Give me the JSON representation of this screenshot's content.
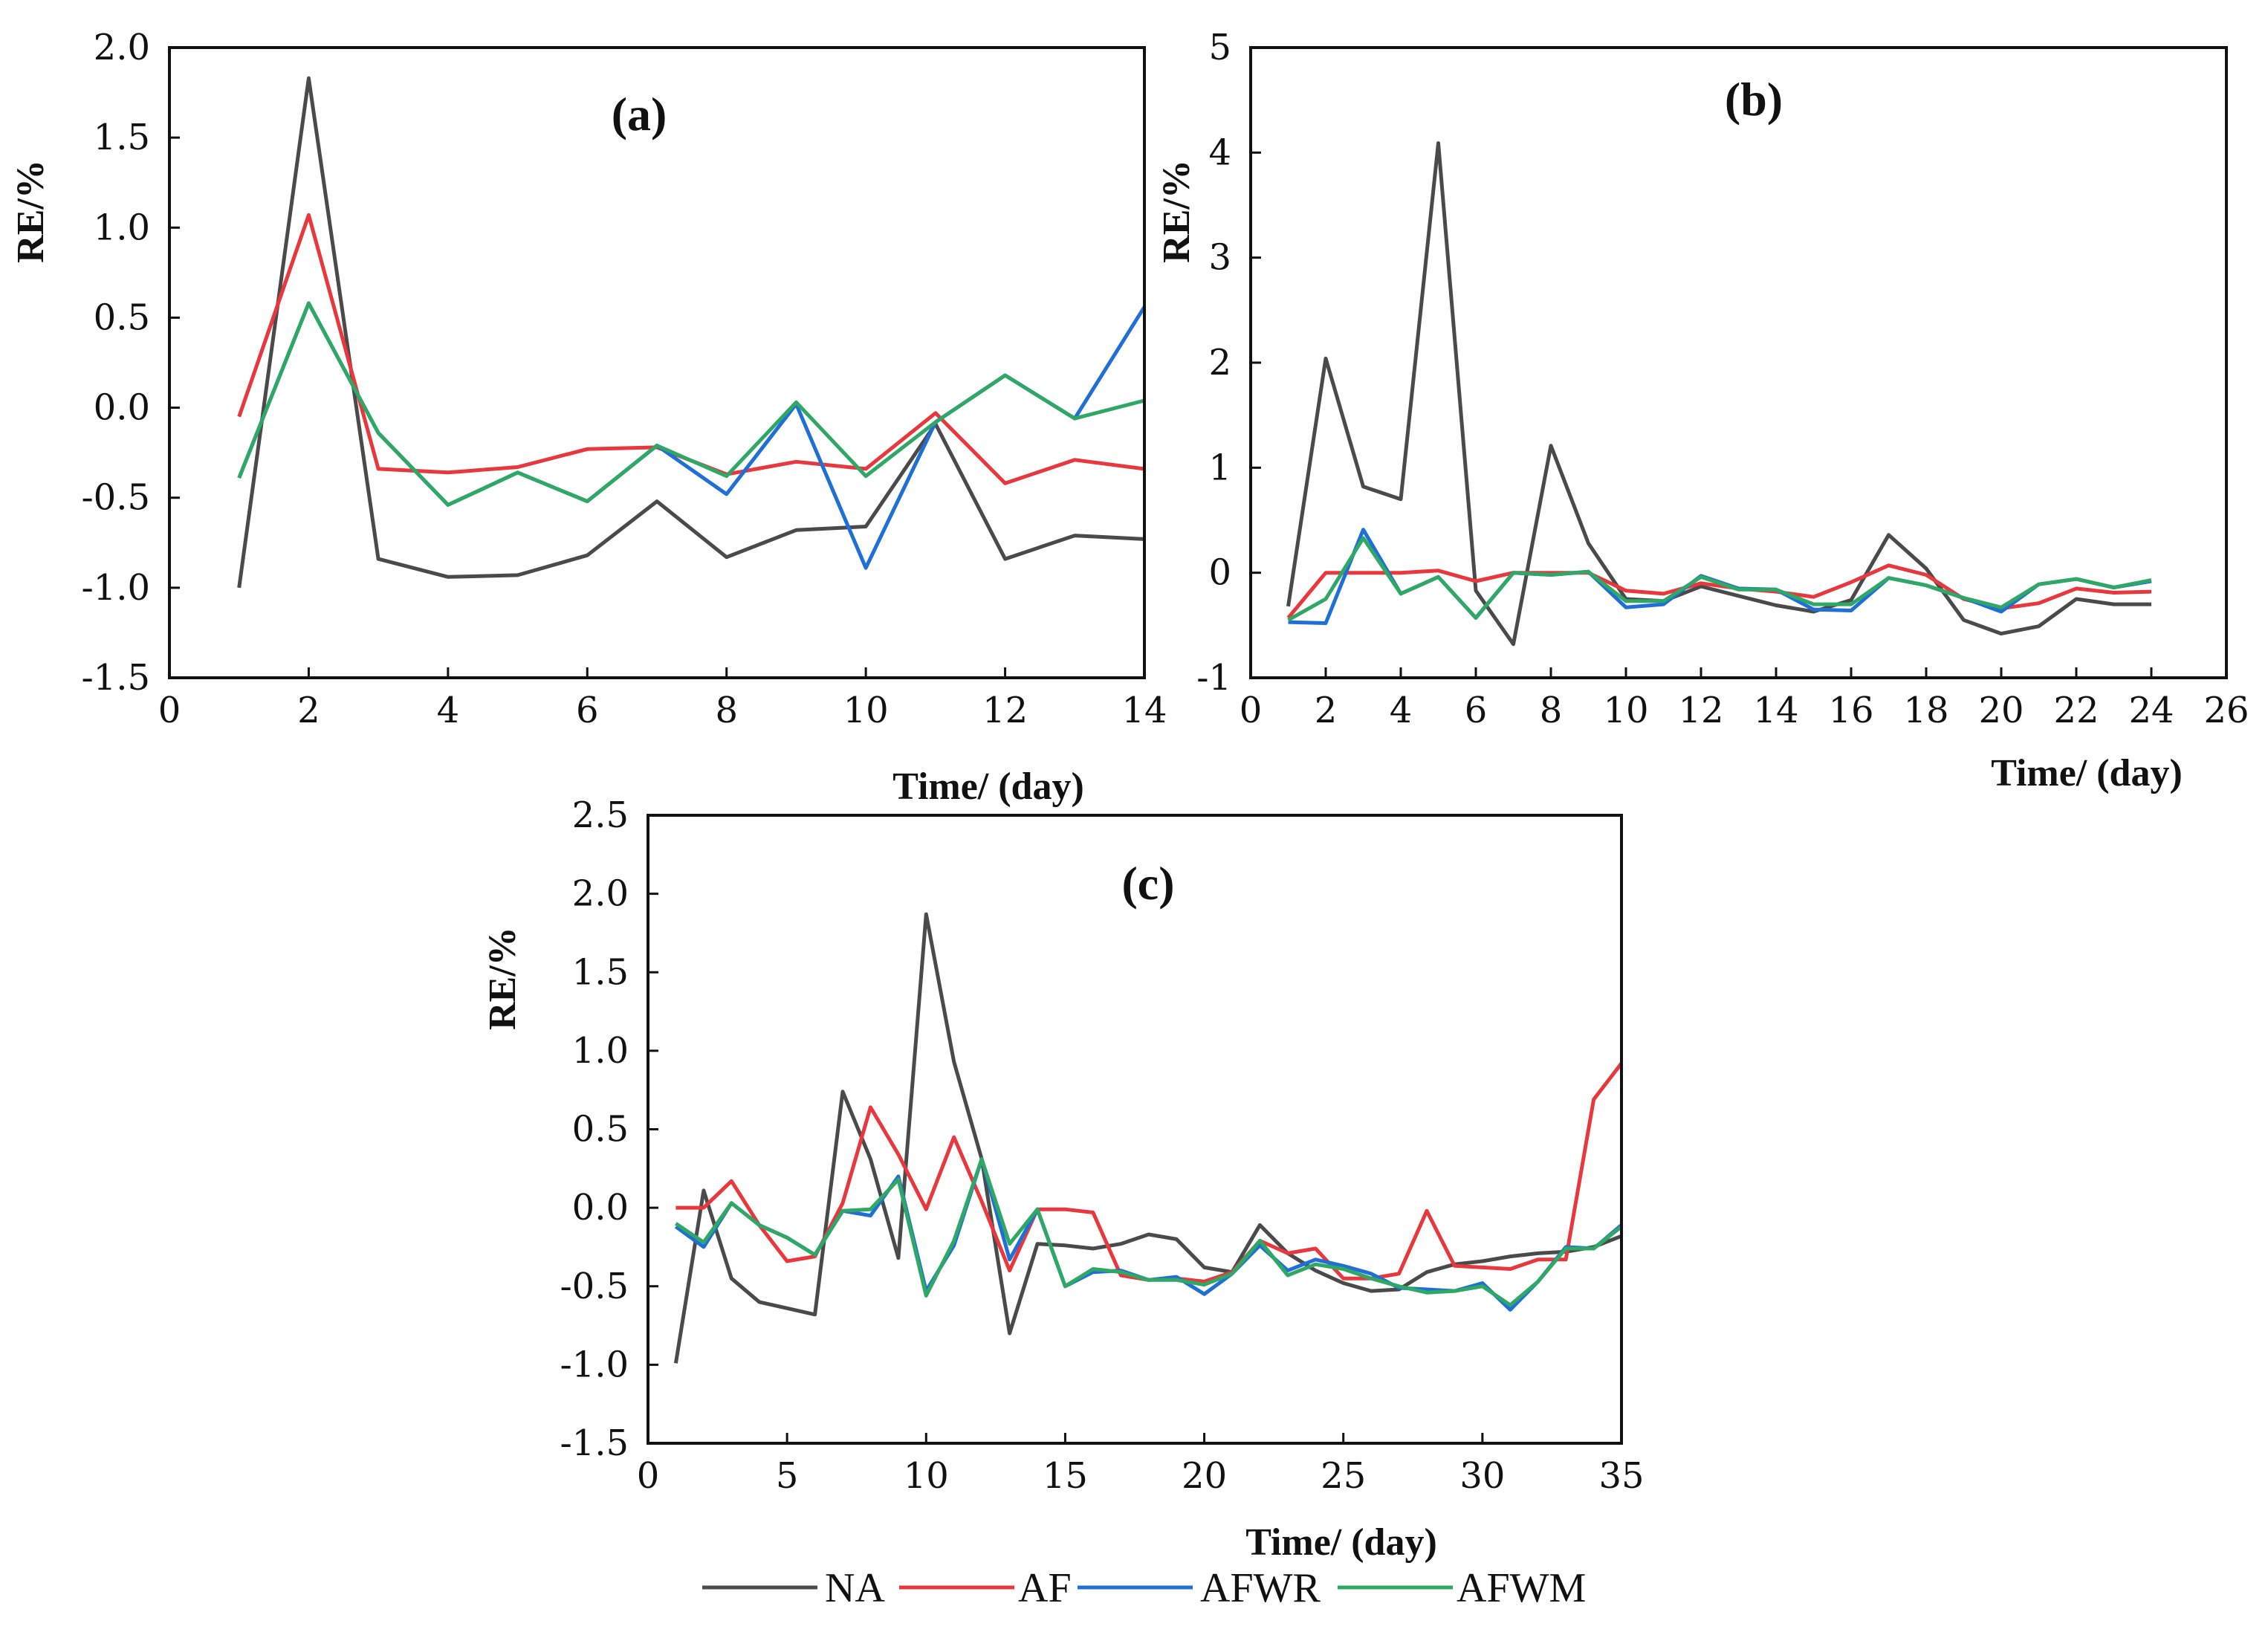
{
  "legend": [
    {
      "name": "NA",
      "color": "#4a4a4a"
    },
    {
      "name": "AF",
      "color": "#e8383d"
    },
    {
      "name": "AFWR",
      "color": "#1f6fd6"
    },
    {
      "name": "AFWM",
      "color": "#2fa866"
    }
  ],
  "chart_data": [
    {
      "type": "line",
      "panel_label": "(a)",
      "xlabel": "Time/ (day)",
      "ylabel": "RE/%",
      "xlim": [
        0,
        14
      ],
      "ylim": [
        -1.5,
        2.0
      ],
      "xticks": [
        0,
        2,
        4,
        6,
        8,
        10,
        12,
        14
      ],
      "xtick_labels": [
        "0",
        "2",
        "4",
        "6",
        "8",
        "10",
        "12",
        "14"
      ],
      "yticks": [
        -1.5,
        -1.0,
        -0.5,
        0.0,
        0.5,
        1.0,
        1.5,
        2.0
      ],
      "ytick_labels": [
        "-1.5",
        "-1.0",
        "-0.5",
        "0.0",
        "0.5",
        "1.0",
        "1.5",
        "2.0"
      ],
      "x": [
        1,
        2,
        3,
        4,
        5,
        6,
        7,
        8,
        9,
        10,
        11,
        12,
        13,
        14
      ],
      "series": [
        {
          "name": "NA",
          "values": [
            -1.0,
            1.83,
            -0.84,
            -0.94,
            -0.93,
            -0.82,
            -0.52,
            -0.83,
            -0.68,
            -0.66,
            -0.09,
            -0.84,
            -0.71,
            -0.73
          ]
        },
        {
          "name": "AF",
          "values": [
            -0.05,
            1.07,
            -0.34,
            -0.36,
            -0.33,
            -0.23,
            -0.22,
            -0.37,
            -0.3,
            -0.34,
            -0.03,
            -0.42,
            -0.29,
            -0.34
          ]
        },
        {
          "name": "AFWR",
          "values": [
            -0.39,
            0.58,
            -0.14,
            -0.54,
            -0.36,
            -0.52,
            -0.21,
            -0.48,
            0.02,
            -0.89,
            -0.08,
            0.18,
            -0.06,
            0.56
          ]
        },
        {
          "name": "AFWM",
          "values": [
            -0.39,
            0.58,
            -0.14,
            -0.54,
            -0.36,
            -0.52,
            -0.21,
            -0.38,
            0.03,
            -0.38,
            -0.08,
            0.18,
            -0.06,
            0.04
          ]
        }
      ]
    },
    {
      "type": "line",
      "panel_label": "(b)",
      "xlabel": "Time/ (day)",
      "ylabel": "RE/%",
      "xlim": [
        0,
        26
      ],
      "ylim": [
        -1,
        5
      ],
      "xticks": [
        0,
        2,
        4,
        6,
        8,
        10,
        12,
        14,
        16,
        18,
        20,
        22,
        24,
        26
      ],
      "xtick_labels": [
        "0",
        "2",
        "4",
        "6",
        "8",
        "10",
        "12",
        "14",
        "16",
        "18",
        "20",
        "22",
        "24",
        "26"
      ],
      "yticks": [
        -1,
        0,
        1,
        2,
        3,
        4,
        5
      ],
      "ytick_labels": [
        "-1",
        "0",
        "1",
        "2",
        "3",
        "4",
        "5"
      ],
      "x": [
        1,
        2,
        3,
        4,
        5,
        6,
        7,
        8,
        9,
        10,
        11,
        12,
        13,
        14,
        15,
        16,
        17,
        18,
        19,
        20,
        21,
        22,
        23,
        24
      ],
      "series": [
        {
          "name": "NA",
          "values": [
            -0.32,
            2.04,
            0.82,
            0.7,
            4.09,
            -0.17,
            -0.68,
            1.21,
            0.28,
            -0.25,
            -0.27,
            -0.13,
            -0.22,
            -0.31,
            -0.37,
            -0.26,
            0.36,
            0.04,
            -0.45,
            -0.58,
            -0.51,
            -0.25,
            -0.3,
            -0.3
          ]
        },
        {
          "name": "AF",
          "values": [
            -0.43,
            0.0,
            0.0,
            0.0,
            0.02,
            -0.08,
            0.0,
            0.0,
            0.0,
            -0.17,
            -0.2,
            -0.1,
            -0.15,
            -0.18,
            -0.23,
            -0.09,
            0.07,
            -0.02,
            -0.25,
            -0.34,
            -0.29,
            -0.15,
            -0.19,
            -0.18
          ]
        },
        {
          "name": "AFWR",
          "values": [
            -0.47,
            -0.48,
            0.41,
            -0.2,
            -0.04,
            -0.43,
            0.0,
            -0.02,
            0.01,
            -0.33,
            -0.3,
            -0.03,
            -0.15,
            -0.16,
            -0.35,
            -0.36,
            -0.05,
            -0.12,
            -0.24,
            -0.37,
            -0.11,
            -0.06,
            -0.14,
            -0.08
          ]
        },
        {
          "name": "AFWM",
          "values": [
            -0.45,
            -0.25,
            0.33,
            -0.2,
            -0.04,
            -0.43,
            0.0,
            -0.02,
            0.01,
            -0.27,
            -0.27,
            -0.04,
            -0.16,
            -0.16,
            -0.3,
            -0.3,
            -0.05,
            -0.12,
            -0.24,
            -0.33,
            -0.11,
            -0.06,
            -0.14,
            -0.07
          ]
        }
      ]
    },
    {
      "type": "line",
      "panel_label": "(c)",
      "xlabel": "Time/ (day)",
      "ylabel": "RE/%",
      "xlim": [
        0,
        35
      ],
      "ylim": [
        -1.5,
        2.5
      ],
      "xticks": [
        0,
        5,
        10,
        15,
        20,
        25,
        30,
        35
      ],
      "xtick_labels": [
        "0",
        "5",
        "10",
        "15",
        "20",
        "25",
        "30",
        "35"
      ],
      "yticks": [
        -1.5,
        -1.0,
        -0.5,
        0.0,
        0.5,
        1.0,
        1.5,
        2.0,
        2.5
      ],
      "ytick_labels": [
        "-1.5",
        "-1.0",
        "-0.5",
        "0.0",
        "0.5",
        "1.0",
        "1.5",
        "2.0",
        "2.5"
      ],
      "x": [
        1,
        2,
        3,
        4,
        5,
        6,
        7,
        8,
        9,
        10,
        11,
        12,
        13,
        14,
        15,
        16,
        17,
        18,
        19,
        20,
        21,
        22,
        23,
        24,
        25,
        26,
        27,
        28,
        29,
        30,
        31,
        32,
        33,
        34,
        35
      ],
      "series": [
        {
          "name": "NA",
          "values": [
            -0.99,
            0.11,
            -0.45,
            -0.6,
            -0.64,
            -0.68,
            0.74,
            0.31,
            -0.32,
            1.87,
            0.93,
            0.31,
            -0.8,
            -0.23,
            -0.24,
            -0.26,
            -0.23,
            -0.17,
            -0.2,
            -0.38,
            -0.41,
            -0.11,
            -0.29,
            -0.4,
            -0.48,
            -0.53,
            -0.52,
            -0.41,
            -0.36,
            -0.34,
            -0.31,
            -0.29,
            -0.28,
            -0.25,
            -0.18
          ]
        },
        {
          "name": "AF",
          "values": [
            0.0,
            0.0,
            0.17,
            -0.11,
            -0.34,
            -0.31,
            0.03,
            0.64,
            0.34,
            -0.01,
            0.45,
            0.04,
            -0.4,
            -0.01,
            -0.01,
            -0.03,
            -0.43,
            -0.46,
            -0.45,
            -0.47,
            -0.41,
            -0.21,
            -0.29,
            -0.26,
            -0.45,
            -0.45,
            -0.42,
            -0.02,
            -0.37,
            -0.38,
            -0.39,
            -0.33,
            -0.33,
            0.69,
            0.92
          ]
        },
        {
          "name": "AFWR",
          "values": [
            -0.12,
            -0.25,
            0.03,
            -0.11,
            -0.19,
            -0.3,
            -0.02,
            -0.05,
            0.2,
            -0.53,
            -0.24,
            0.31,
            -0.33,
            -0.01,
            -0.5,
            -0.41,
            -0.4,
            -0.46,
            -0.44,
            -0.55,
            -0.42,
            -0.24,
            -0.4,
            -0.33,
            -0.37,
            -0.42,
            -0.51,
            -0.52,
            -0.53,
            -0.48,
            -0.65,
            -0.47,
            -0.25,
            -0.26,
            -0.11
          ]
        },
        {
          "name": "AFWM",
          "values": [
            -0.1,
            -0.22,
            0.03,
            -0.11,
            -0.19,
            -0.3,
            -0.02,
            -0.01,
            0.18,
            -0.56,
            -0.21,
            0.31,
            -0.23,
            -0.01,
            -0.5,
            -0.39,
            -0.41,
            -0.46,
            -0.46,
            -0.49,
            -0.42,
            -0.21,
            -0.43,
            -0.36,
            -0.39,
            -0.45,
            -0.5,
            -0.54,
            -0.53,
            -0.5,
            -0.62,
            -0.47,
            -0.26,
            -0.26,
            -0.12
          ]
        }
      ]
    }
  ]
}
